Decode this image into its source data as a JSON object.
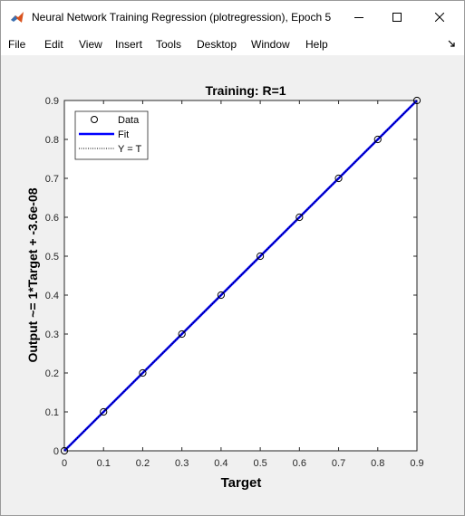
{
  "window": {
    "title": "Neural Network Training Regression (plotregression), Epoch 5...",
    "app_icon": "matlab-icon"
  },
  "menubar": {
    "items": [
      "File",
      "Edit",
      "View",
      "Insert",
      "Tools",
      "Desktop",
      "Window",
      "Help"
    ]
  },
  "chart_data": {
    "type": "scatter",
    "title": "Training: R=1",
    "xlabel": "Target",
    "ylabel": "Output ~= 1*Target + -3.6e-08",
    "xlim": [
      0,
      0.9
    ],
    "ylim": [
      0,
      0.9
    ],
    "xticks": [
      "0",
      "0.1",
      "0.2",
      "0.3",
      "0.4",
      "0.5",
      "0.6",
      "0.7",
      "0.8",
      "0.9"
    ],
    "yticks": [
      "0",
      "0.1",
      "0.2",
      "0.3",
      "0.4",
      "0.5",
      "0.6",
      "0.7",
      "0.8",
      "0.9"
    ],
    "legend": {
      "placement": "top-left",
      "entries": [
        "Data",
        "Fit",
        "Y = T"
      ]
    },
    "series": [
      {
        "name": "Data",
        "kind": "markers",
        "color": "#000000",
        "x": [
          0,
          0.1,
          0.2,
          0.3,
          0.4,
          0.5,
          0.6,
          0.7,
          0.8,
          0.9
        ],
        "y": [
          0,
          0.1,
          0.2,
          0.3,
          0.4,
          0.5,
          0.6,
          0.7,
          0.8,
          0.9
        ]
      },
      {
        "name": "Fit",
        "kind": "line",
        "color": "#0000ff",
        "x": [
          0,
          0.9
        ],
        "y": [
          0,
          0.9
        ]
      },
      {
        "name": "Y = T",
        "kind": "dotted-line",
        "color": "#000000",
        "x": [
          0,
          0.9
        ],
        "y": [
          0,
          0.9
        ]
      }
    ],
    "grid": false
  }
}
